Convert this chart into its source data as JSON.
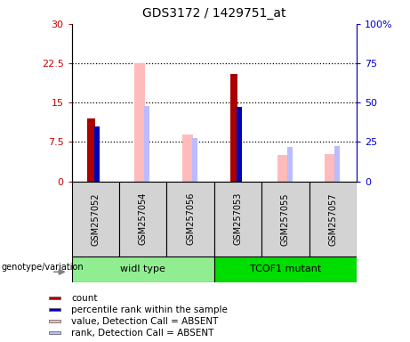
{
  "title": "GDS3172 / 1429751_at",
  "samples": [
    "GSM257052",
    "GSM257054",
    "GSM257056",
    "GSM257053",
    "GSM257055",
    "GSM257057"
  ],
  "groups": [
    {
      "label": "widl type",
      "indices": [
        0,
        1,
        2
      ],
      "color": "#90ee90"
    },
    {
      "label": "TCOF1 mutant",
      "indices": [
        3,
        4,
        5
      ],
      "color": "#00dd00"
    }
  ],
  "count_values": [
    12.0,
    null,
    null,
    20.5,
    null,
    null
  ],
  "percentile_rank_values": [
    35.0,
    null,
    null,
    47.0,
    null,
    null
  ],
  "absent_value_values": [
    null,
    22.5,
    9.0,
    null,
    5.0,
    5.2
  ],
  "absent_rank_values": [
    null,
    48.0,
    27.5,
    null,
    22.0,
    22.5
  ],
  "ylim_left": [
    0,
    30
  ],
  "ylim_right": [
    0,
    100
  ],
  "yticks_left": [
    0,
    7.5,
    15,
    22.5,
    30
  ],
  "yticks_right": [
    0,
    25,
    50,
    75,
    100
  ],
  "ytick_labels_left": [
    "0",
    "7.5",
    "15",
    "22.5",
    "30"
  ],
  "ytick_labels_right": [
    "0",
    "25",
    "50",
    "75",
    "100%"
  ],
  "grid_lines": [
    7.5,
    15,
    22.5
  ],
  "bar_width": 0.25,
  "count_color": "#aa0000",
  "rank_color": "#0000bb",
  "absent_value_color": "#ffbbbb",
  "absent_rank_color": "#bbbbff",
  "legend_items": [
    {
      "label": "count",
      "color": "#aa0000"
    },
    {
      "label": "percentile rank within the sample",
      "color": "#0000bb"
    },
    {
      "label": "value, Detection Call = ABSENT",
      "color": "#ffbbbb"
    },
    {
      "label": "rank, Detection Call = ABSENT",
      "color": "#bbbbff"
    }
  ],
  "genotype_label": "genotype/variation",
  "plot_bg_color": "#ffffff",
  "figure_bg_color": "#ffffff",
  "left_axis_color": "#cc0000",
  "right_axis_color": "#0000cc",
  "sample_box_color": "#d3d3d3"
}
